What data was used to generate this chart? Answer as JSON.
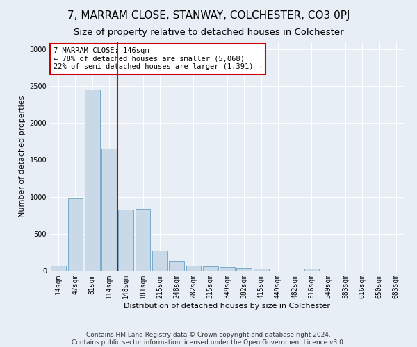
{
  "title": "7, MARRAM CLOSE, STANWAY, COLCHESTER, CO3 0PJ",
  "subtitle": "Size of property relative to detached houses in Colchester",
  "xlabel": "Distribution of detached houses by size in Colchester",
  "ylabel": "Number of detached properties",
  "categories": [
    "14sqm",
    "47sqm",
    "81sqm",
    "114sqm",
    "148sqm",
    "181sqm",
    "215sqm",
    "248sqm",
    "282sqm",
    "315sqm",
    "349sqm",
    "382sqm",
    "415sqm",
    "449sqm",
    "482sqm",
    "516sqm",
    "549sqm",
    "583sqm",
    "616sqm",
    "650sqm",
    "683sqm"
  ],
  "values": [
    70,
    980,
    2450,
    1650,
    830,
    840,
    270,
    135,
    65,
    55,
    48,
    38,
    28,
    0,
    0,
    30,
    0,
    0,
    0,
    0,
    0
  ],
  "bar_color": "#c9d9e8",
  "bar_edge_color": "#7aaac8",
  "marker_color": "#cc0000",
  "annotation_text": "7 MARRAM CLOSE: 146sqm\n← 78% of detached houses are smaller (5,068)\n22% of semi-detached houses are larger (1,391) →",
  "annotation_box_color": "#ffffff",
  "annotation_box_edge": "#cc0000",
  "ylim": [
    0,
    3100
  ],
  "yticks": [
    0,
    500,
    1000,
    1500,
    2000,
    2500,
    3000
  ],
  "footer_text": "Contains HM Land Registry data © Crown copyright and database right 2024.\nContains public sector information licensed under the Open Government Licence v3.0.",
  "background_color": "#e8eef5",
  "grid_color": "#ffffff",
  "title_fontsize": 11,
  "subtitle_fontsize": 9.5,
  "label_fontsize": 8,
  "tick_fontsize": 7,
  "footer_fontsize": 6.5,
  "annotation_fontsize": 7.5
}
